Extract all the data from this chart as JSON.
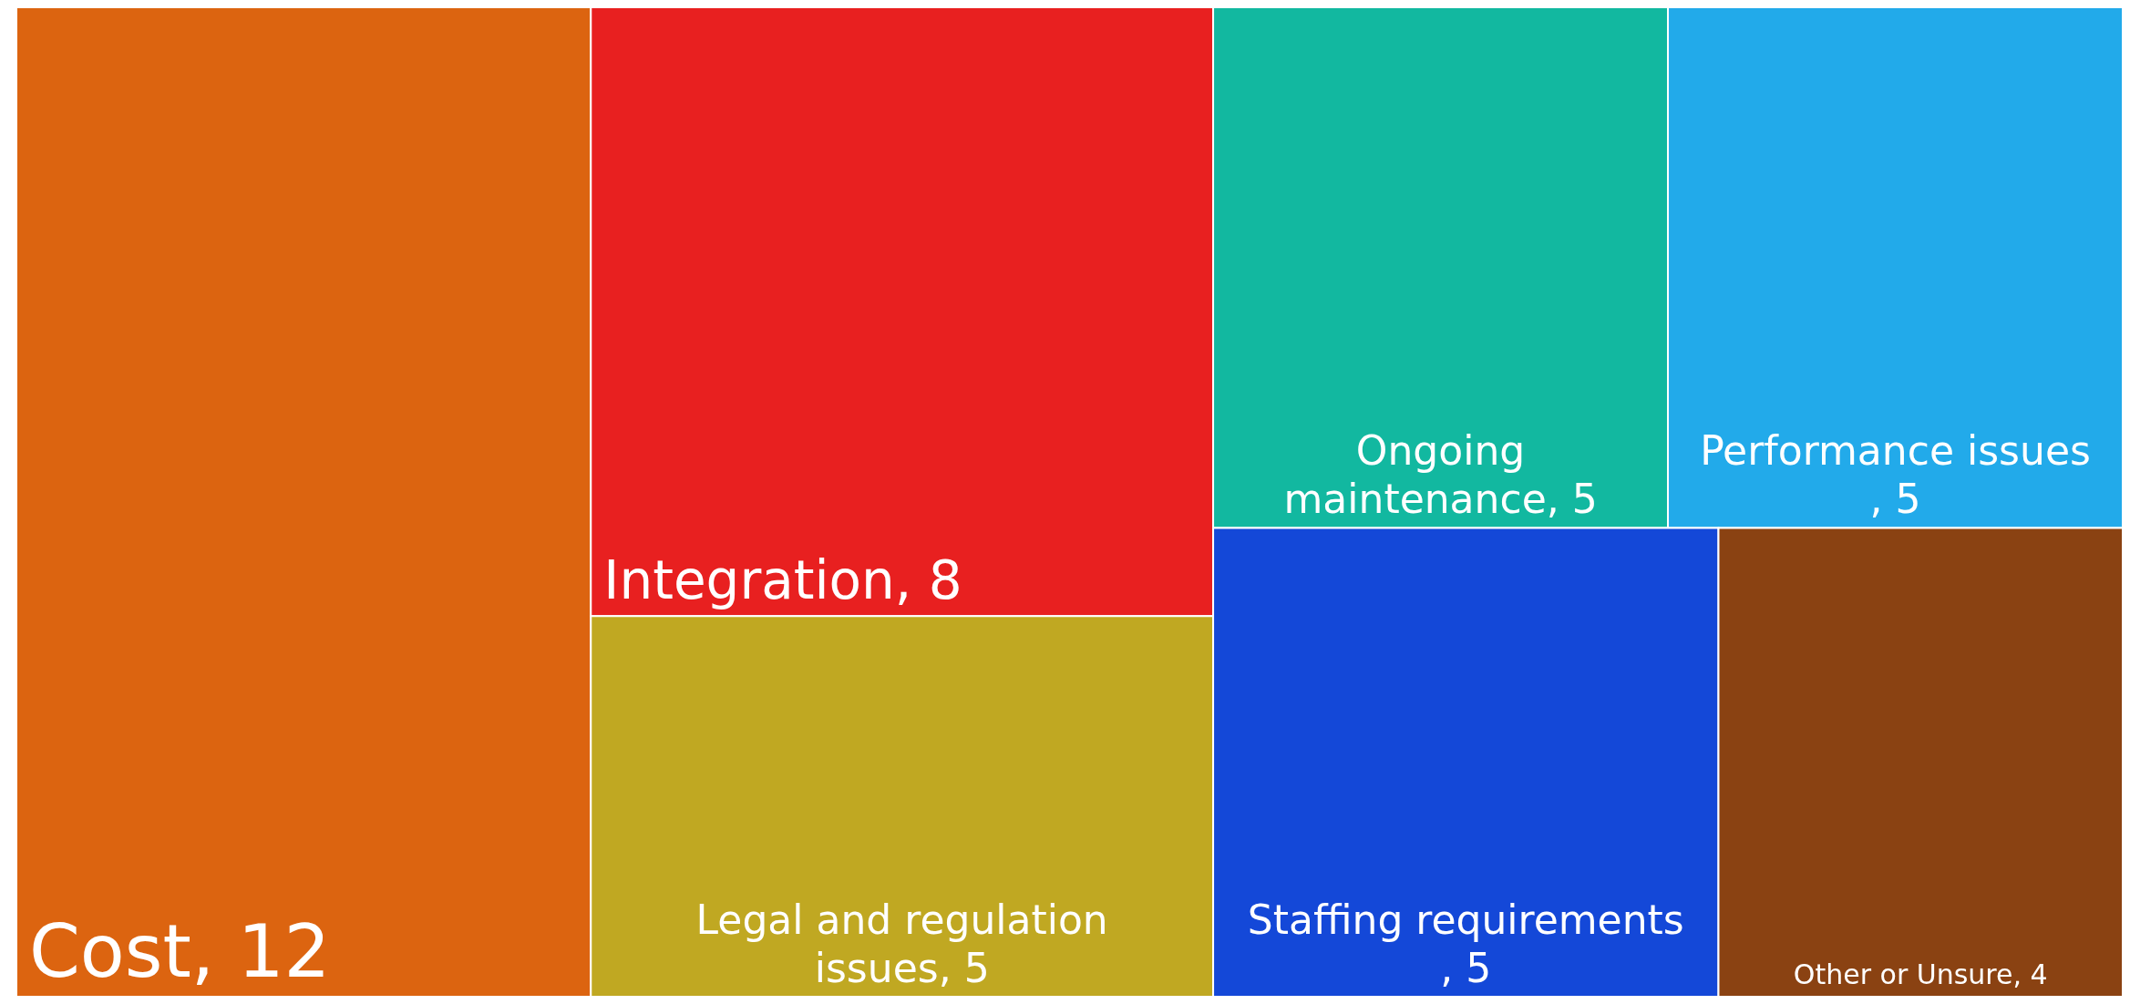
{
  "chart_data": {
    "type": "other",
    "categories": [
      "Cost",
      "Integration",
      "Legal and regulation issues",
      "Ongoing maintenance",
      "Performance issues",
      "Staffing requirements",
      "Other or Unsure"
    ],
    "values": [
      12,
      8,
      5,
      5,
      5,
      5,
      4
    ],
    "value_labels": [
      ", 12",
      ", 8",
      ", 5",
      ", 5",
      ", 5",
      ", 5",
      ", 4"
    ],
    "colors": [
      "#dc6410",
      "#e82020",
      "#c0a822",
      "#12b8a0",
      "#22aaea",
      "#1448d8",
      "#8a4212"
    ]
  }
}
